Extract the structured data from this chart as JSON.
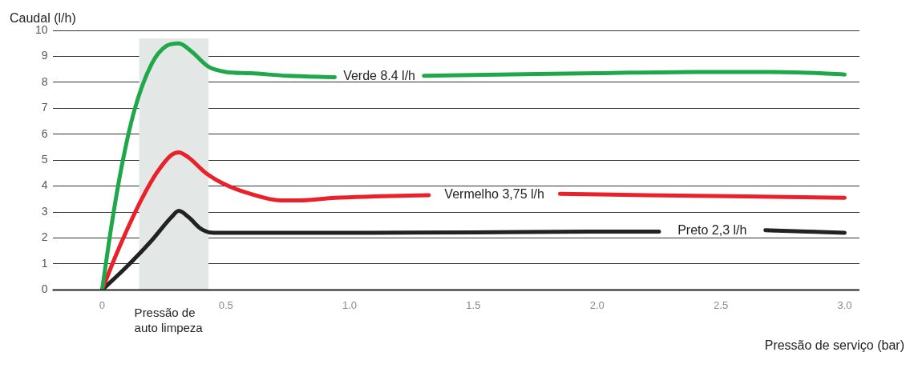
{
  "chart_data": {
    "type": "line",
    "xlabel": "Pressão de serviço (bar)",
    "ylabel": "Caudal (l/h)",
    "xlim": [
      -0.2,
      3.06
    ],
    "ylim": [
      0,
      10
    ],
    "xticks": [
      0,
      0.5,
      {
        "value": 1,
        "label": "1.0"
      },
      1.5,
      {
        "value": 2,
        "label": "2.0"
      },
      2.5,
      {
        "value": 3,
        "label": "3.0"
      }
    ],
    "yticks": [
      0,
      1,
      2,
      3,
      4,
      5,
      6,
      7,
      8,
      9,
      10
    ],
    "grid": "y",
    "legend": false,
    "marker": "none",
    "line_style": "solid",
    "bands": [
      {
        "axis": "x",
        "from": 0.15,
        "to": 0.43,
        "label": "Pressão de auto limpeza",
        "color": "#e3e7e5"
      }
    ],
    "series": [
      {
        "name": "Verde 8.4 l/h",
        "color": "#1fa84a",
        "x": [
          0,
          0.04,
          0.08,
          0.13,
          0.2,
          0.26,
          0.31,
          0.36,
          0.43,
          0.5,
          0.6,
          0.75,
          0.94,
          1.1,
          1.3,
          1.6,
          2.0,
          2.4,
          2.7,
          2.9,
          3.0
        ],
        "values": [
          0,
          2.6,
          4.8,
          6.9,
          8.7,
          9.4,
          9.5,
          9.2,
          8.6,
          8.4,
          8.35,
          8.25,
          8.2,
          null,
          8.25,
          8.3,
          8.35,
          8.4,
          8.4,
          8.35,
          8.3
        ]
      },
      {
        "name": "Vermelho 3,75 l/h",
        "color": "#e8212b",
        "x": [
          0,
          0.05,
          0.1,
          0.16,
          0.22,
          0.28,
          0.31,
          0.35,
          0.42,
          0.5,
          0.6,
          0.72,
          0.8,
          0.94,
          1.1,
          1.32,
          1.6,
          1.85,
          2.2,
          2.6,
          3.0
        ],
        "values": [
          0,
          1.2,
          2.3,
          3.5,
          4.5,
          5.2,
          5.3,
          5.1,
          4.5,
          4.05,
          3.7,
          3.45,
          3.45,
          3.55,
          3.6,
          3.65,
          null,
          3.7,
          3.65,
          3.6,
          3.55
        ]
      },
      {
        "name": "Preto 2,3 l/h",
        "color": "#222222",
        "x": [
          0,
          0.1,
          0.2,
          0.28,
          0.31,
          0.35,
          0.4,
          0.45,
          0.6,
          1.0,
          1.5,
          2.0,
          2.25,
          2.5,
          2.68,
          2.85,
          3.0
        ],
        "values": [
          0,
          0.9,
          1.9,
          2.8,
          3.05,
          2.8,
          2.35,
          2.2,
          2.2,
          2.2,
          2.22,
          2.25,
          2.25,
          null,
          2.3,
          2.25,
          2.2
        ]
      }
    ]
  }
}
